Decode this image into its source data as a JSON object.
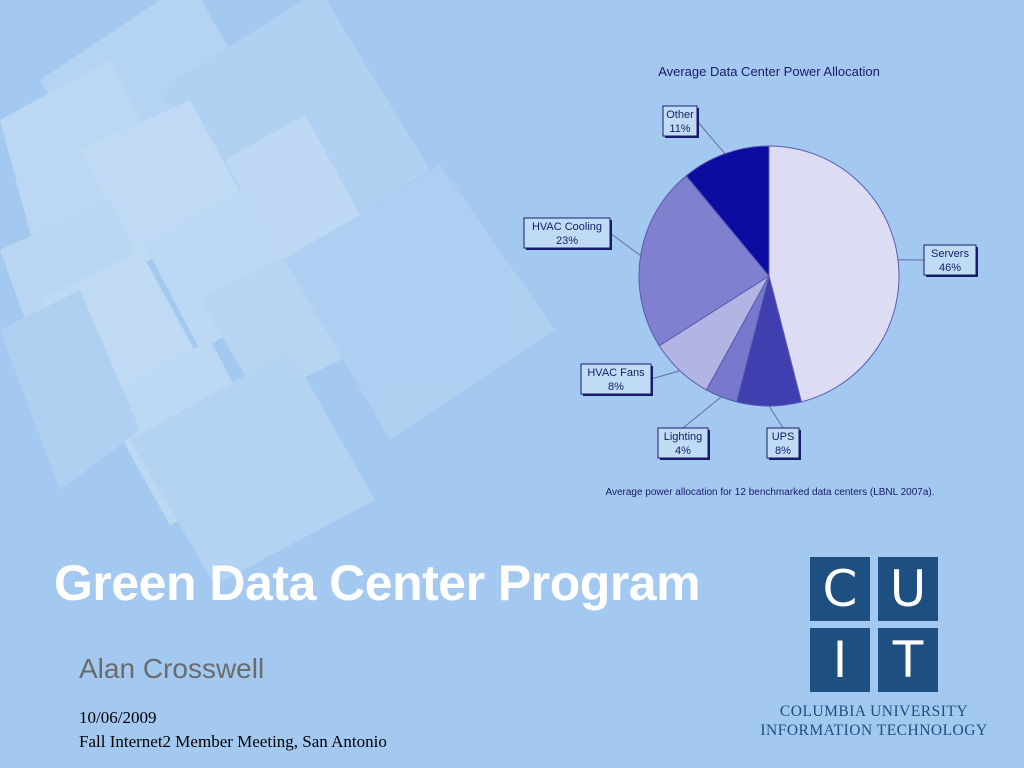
{
  "slide": {
    "title": "Green Data Center Program",
    "presenter": "Alan Crosswell",
    "date": "10/06/2009",
    "event": "Fall Internet2 Member Meeting, San Antonio"
  },
  "logo": {
    "letters": [
      "C",
      "U",
      "I",
      "T"
    ],
    "org_line1": "COLUMBIA UNIVERSITY",
    "org_line2": "INFORMATION TECHNOLOGY",
    "color": "#1d4f80"
  },
  "colors": {
    "background": "#a3c9f0",
    "title": "#ffffff"
  },
  "chart_data": {
    "type": "pie",
    "title": "Average Data Center Power Allocation",
    "caption": "Average power allocation for 12 benchmarked data centers (LBNL 2007a).",
    "slices": [
      {
        "label": "Servers",
        "value": 46,
        "value_label": "46%",
        "color": "#dcdcf4"
      },
      {
        "label": "UPS",
        "value": 8,
        "value_label": "8%",
        "color": "#3f3fb0"
      },
      {
        "label": "Lighting",
        "value": 4,
        "value_label": "4%",
        "color": "#7878cc"
      },
      {
        "label": "HVAC Fans",
        "value": 8,
        "value_label": "8%",
        "color": "#b4b4e4"
      },
      {
        "label": "HVAC Cooling",
        "value": 23,
        "value_label": "23%",
        "color": "#8080d0"
      },
      {
        "label": "Other",
        "value": 11,
        "value_label": "11%",
        "color": "#0c0ca0"
      }
    ]
  }
}
